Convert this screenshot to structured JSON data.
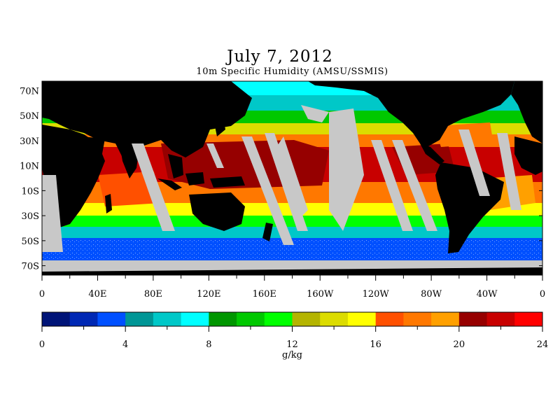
{
  "title": "July 7, 2012",
  "subtitle": "10m Specific Humidity (AMSU/SSMIS)",
  "map": {
    "lat_labels": [
      "70N",
      "50N",
      "30N",
      "10N",
      "10S",
      "30S",
      "50S",
      "70S"
    ],
    "lat_values": [
      70,
      50,
      30,
      10,
      -10,
      -30,
      -50,
      -70
    ],
    "lon_labels": [
      "0",
      "40E",
      "80E",
      "120E",
      "160E",
      "160W",
      "120W",
      "80W",
      "40W",
      "0"
    ],
    "lon_values": [
      0,
      40,
      80,
      120,
      160,
      200,
      240,
      280,
      320,
      360
    ],
    "colors": {
      "land": "#000000",
      "no_data": "#c8c8c8"
    }
  },
  "colorbar": {
    "ticks": [
      "0",
      "4",
      "8",
      "12",
      "16",
      "20",
      "24"
    ],
    "tick_values": [
      0,
      4,
      8,
      12,
      16,
      20,
      24
    ],
    "min": 0,
    "max": 24,
    "units": "g/kg",
    "colors": [
      "#001478",
      "#0028b4",
      "#0050ff",
      "#009696",
      "#00c8c8",
      "#00ffff",
      "#009600",
      "#00c800",
      "#00ff00",
      "#b4b400",
      "#dcdc00",
      "#ffff00",
      "#ff5000",
      "#ff7800",
      "#ffa000",
      "#960000",
      "#c80000",
      "#ff0000"
    ]
  }
}
